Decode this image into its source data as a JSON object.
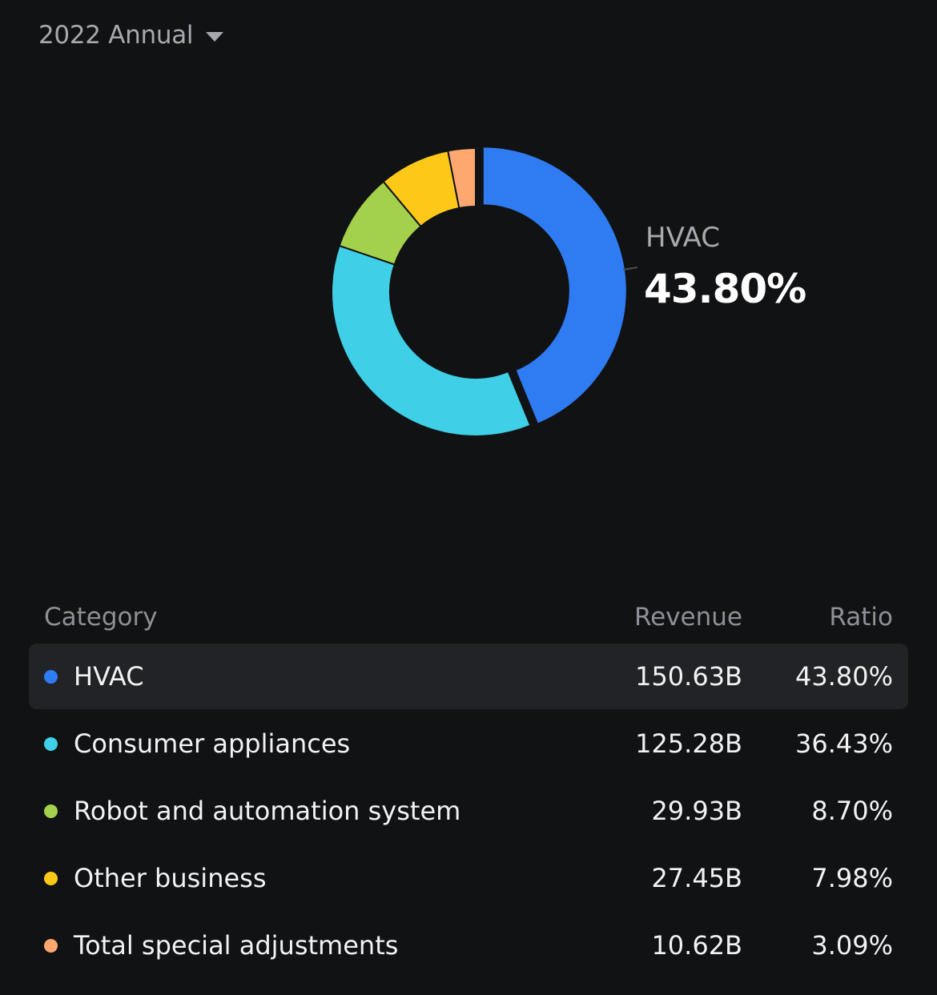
{
  "period": {
    "label": "2022 Annual",
    "icon": "caret-down-icon"
  },
  "colors": {
    "background": "#111214",
    "hvac": "#2f7bf2",
    "consumer": "#3fcfe6",
    "robot": "#a3d14b",
    "other": "#fdc818",
    "special": "#fea86f"
  },
  "callout": {
    "label": "HVAC",
    "value": "43.80%"
  },
  "table": {
    "headers": {
      "category": "Category",
      "revenue": "Revenue",
      "ratio": "Ratio"
    },
    "rows": [
      {
        "category": "HVAC",
        "revenue": "150.63B",
        "ratio": "43.80%",
        "color": "#2f7bf2",
        "selected": true
      },
      {
        "category": "Consumer appliances",
        "revenue": "125.28B",
        "ratio": "36.43%",
        "color": "#3fcfe6",
        "selected": false
      },
      {
        "category": "Robot and automation system",
        "revenue": "29.93B",
        "ratio": "8.70%",
        "color": "#a3d14b",
        "selected": false
      },
      {
        "category": "Other business",
        "revenue": "27.45B",
        "ratio": "7.98%",
        "color": "#fdc818",
        "selected": false
      },
      {
        "category": "Total special adjustments",
        "revenue": "10.62B",
        "ratio": "3.09%",
        "color": "#fea86f",
        "selected": false
      }
    ]
  },
  "chart_data": {
    "type": "pie",
    "donut": true,
    "selected": "HVAC",
    "categories": [
      "HVAC",
      "Consumer appliances",
      "Robot and automation system",
      "Other business",
      "Total special adjustments"
    ],
    "values": [
      43.8,
      36.43,
      8.7,
      7.98,
      3.09
    ],
    "revenue": [
      150.63,
      125.28,
      29.93,
      27.45,
      10.62
    ],
    "colors": [
      "#2f7bf2",
      "#3fcfe6",
      "#a3d14b",
      "#fdc818",
      "#fea86f"
    ]
  }
}
